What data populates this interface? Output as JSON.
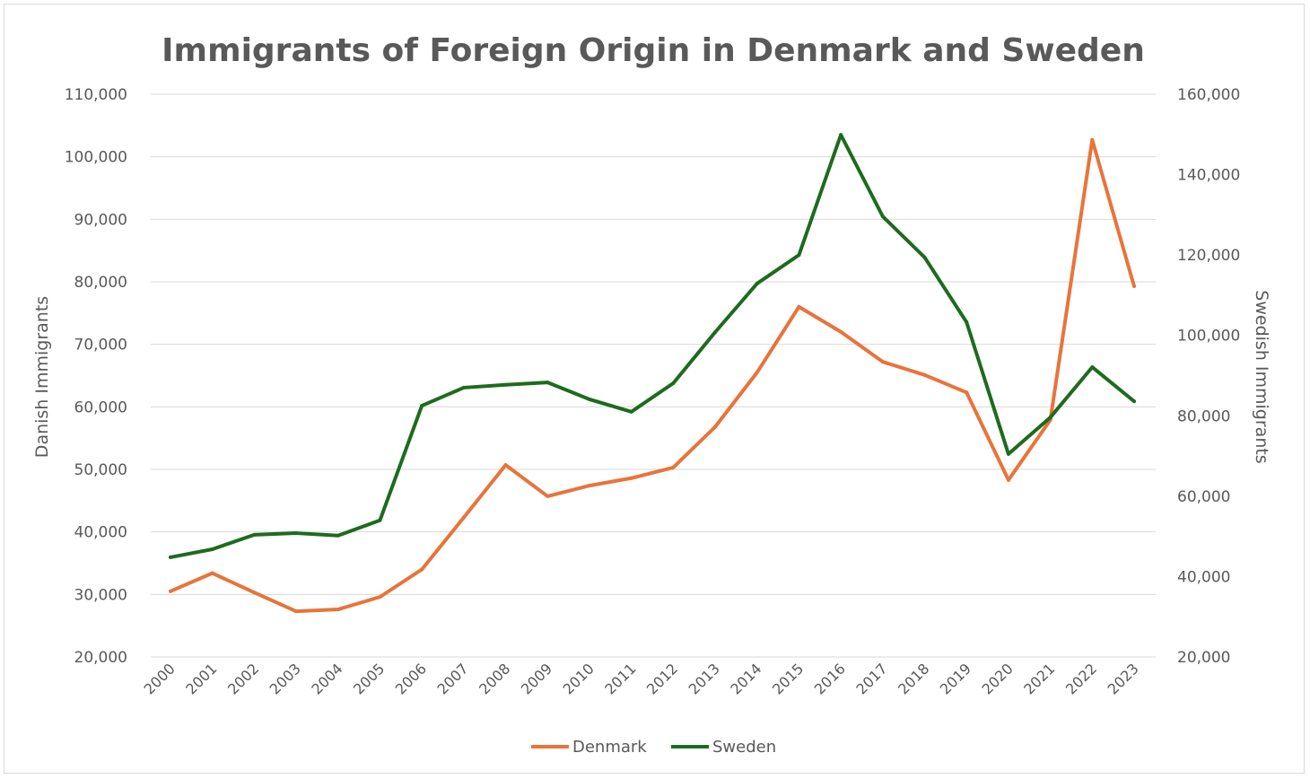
{
  "chart_data": {
    "type": "line",
    "title": "Immigrants of Foreign Origin in Denmark and Sweden",
    "ylabel": "Danish Immigrants",
    "y2label": "Swedish Immigrants",
    "xlabel": "",
    "ylim": [
      20000,
      110000
    ],
    "y2lim": [
      20000,
      160000
    ],
    "yticks": [
      "20,000",
      "30,000",
      "40,000",
      "50,000",
      "60,000",
      "70,000",
      "80,000",
      "90,000",
      "100,000",
      "110,000"
    ],
    "y2ticks": [
      "20,000",
      "40,000",
      "60,000",
      "80,000",
      "100,000",
      "120,000",
      "140,000",
      "160,000"
    ],
    "grid": true,
    "legend": "bottom",
    "categories": [
      "2000",
      "2001",
      "2002",
      "2003",
      "2004",
      "2005",
      "2006",
      "2007",
      "2008",
      "2009",
      "2010",
      "2011",
      "2012",
      "2013",
      "2014",
      "2015",
      "2016",
      "2017",
      "2018",
      "2019",
      "2020",
      "2021",
      "2022",
      "2023"
    ],
    "series": [
      {
        "name": "Denmark",
        "axis": "left",
        "color": "#e8743b",
        "values": [
          30500,
          33400,
          30300,
          27300,
          27600,
          29600,
          34000,
          42300,
          50700,
          45700,
          47400,
          48600,
          50300,
          56800,
          65500,
          76000,
          72000,
          67200,
          65100,
          62300,
          48300,
          57900,
          102700,
          79300
        ]
      },
      {
        "name": "Sweden",
        "axis": "right",
        "color": "#1e6b1e",
        "values": [
          44800,
          46800,
          50400,
          50800,
          50200,
          54000,
          82500,
          87000,
          87700,
          88300,
          84100,
          81000,
          88100,
          100800,
          112900,
          120000,
          149900,
          129600,
          119400,
          103300,
          70500,
          79600,
          92100,
          83600
        ]
      }
    ]
  }
}
